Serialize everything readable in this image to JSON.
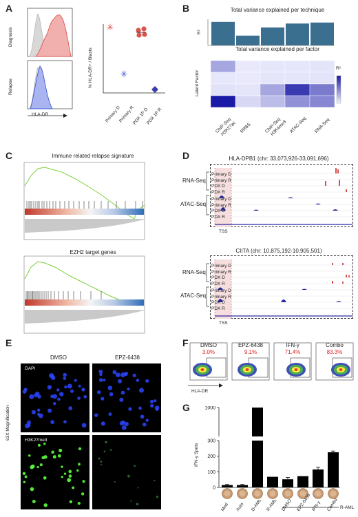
{
  "panels": {
    "A": {
      "letter": "A",
      "row_labels": [
        "Diagnosis",
        "Relapse"
      ],
      "x_label": "HLA-DR",
      "y_label": "% HLA-DR+ / Blasts",
      "categories": [
        "Primary D",
        "Primary R",
        "PDX 1P D",
        "PDX 1P R"
      ],
      "colors": {
        "diagnosis": "#d9534f",
        "relapse": "#3e5bd6",
        "control": "#bdbdbd"
      }
    },
    "B": {
      "letter": "B",
      "top_title": "Total variance explained per technique",
      "top_ylabel": "R²",
      "bottom_title": "Total variance explained per factor",
      "bottom_ylabel": "Latent Factor",
      "legend_label": "R²",
      "techniques": [
        "ChIP-Seq H3K27ac",
        "RRBS",
        "ChIP-Seq H3K4me3",
        "ATAC-Seq",
        "RNA-Seq"
      ],
      "technique_labels_line1": [
        "ChIP-Seq",
        "RRBS",
        "ChIP-Seq",
        "ATAC-Seq",
        "RNA-Seq"
      ],
      "technique_labels_line2": [
        "H3K27ac",
        "",
        "H3K4me3",
        "",
        ""
      ],
      "bar_color": "#3b6f8f"
    },
    "C": {
      "letter": "C",
      "title1": "Immune related relapse signature",
      "title2": "EZH2 target genes"
    },
    "D": {
      "letter": "D",
      "title1": "HLA-DPB1 (chr: 33,073,926-33,091,696)",
      "title2": "CIITA (chr: 10,875,192-10,905,501)",
      "group_rna": "RNA-Seq",
      "group_atac": "ATAC-Seq",
      "tracks": [
        "Primary D",
        "Primary R",
        "PDX D",
        "PDX R"
      ],
      "tss": "TSS"
    },
    "E": {
      "letter": "E",
      "col_labels": [
        "DMSO",
        "EPZ-6438"
      ],
      "row_labels": [
        "DAPI",
        "H3K27me3"
      ],
      "side_label": "63X Magnification"
    },
    "F": {
      "letter": "F",
      "conditions": [
        "DMSO",
        "EPZ-6438",
        "IFN-γ",
        "Combo"
      ],
      "percentages": [
        "3.0%",
        "9.1%",
        "71.4%",
        "83.3%"
      ],
      "x_label": "HLA-DR"
    },
    "G": {
      "letter": "G",
      "y_label": "IFN-γ Spots",
      "group_label": "R-AML",
      "categories": [
        "Med",
        "Auto",
        "D-AML",
        "R-AML",
        "DMSO",
        "EPZ-6438",
        "IFN-γ",
        "Combo"
      ],
      "y_ticks": [
        "0",
        "100",
        "200",
        "300",
        "1000"
      ]
    }
  },
  "chart_data": [
    {
      "type": "scatter",
      "panel": "A",
      "title": "",
      "xlabel": "",
      "ylabel": "% HLA-DR+ / Blasts",
      "categories": [
        "Primary D",
        "Primary R",
        "PDX 1P D",
        "PDX 1P R"
      ],
      "series": [
        {
          "values": [
            95,
            27,
            88,
            5
          ]
        }
      ],
      "ylim": [
        0,
        100
      ]
    },
    {
      "type": "bar",
      "panel": "B",
      "title": "Total variance explained per technique",
      "ylabel": "R²",
      "categories": [
        "ChIP-Seq H3K27ac",
        "RRBS",
        "ChIP-Seq H3K4me3",
        "ATAC-Seq",
        "RNA-Seq"
      ],
      "values": [
        0.72,
        0.3,
        0.55,
        0.67,
        0.7
      ],
      "ylim": [
        0,
        0.8
      ]
    },
    {
      "type": "heatmap",
      "panel": "B",
      "title": "Total variance explained per factor",
      "ylabel": "Latent Factor",
      "columns": [
        "ChIP-Seq H3K27ac",
        "RRBS",
        "ChIP-Seq H3K4me3",
        "ATAC-Seq",
        "RNA-Seq"
      ],
      "values": [
        [
          0.35,
          0.02,
          0.05,
          0.05,
          0.06
        ],
        [
          0.05,
          0.03,
          0.06,
          0.06,
          0.07
        ],
        [
          0.08,
          0.06,
          0.35,
          0.85,
          0.55
        ],
        [
          1.0,
          0.12,
          0.25,
          0.45,
          0.5
        ]
      ]
    },
    {
      "type": "bar",
      "panel": "G",
      "title": "",
      "ylabel": "IFN-γ Spots",
      "categories": [
        "Med",
        "Auto",
        "D-AML",
        "R-AML",
        "DMSO",
        "EPZ-6438",
        "IFN-γ",
        "Combo"
      ],
      "values": [
        15,
        15,
        1000,
        68,
        52,
        72,
        115,
        225
      ],
      "errors": [
        4,
        4,
        0,
        0,
        12,
        0,
        15,
        8
      ],
      "ylim": [
        0,
        1000
      ]
    }
  ]
}
